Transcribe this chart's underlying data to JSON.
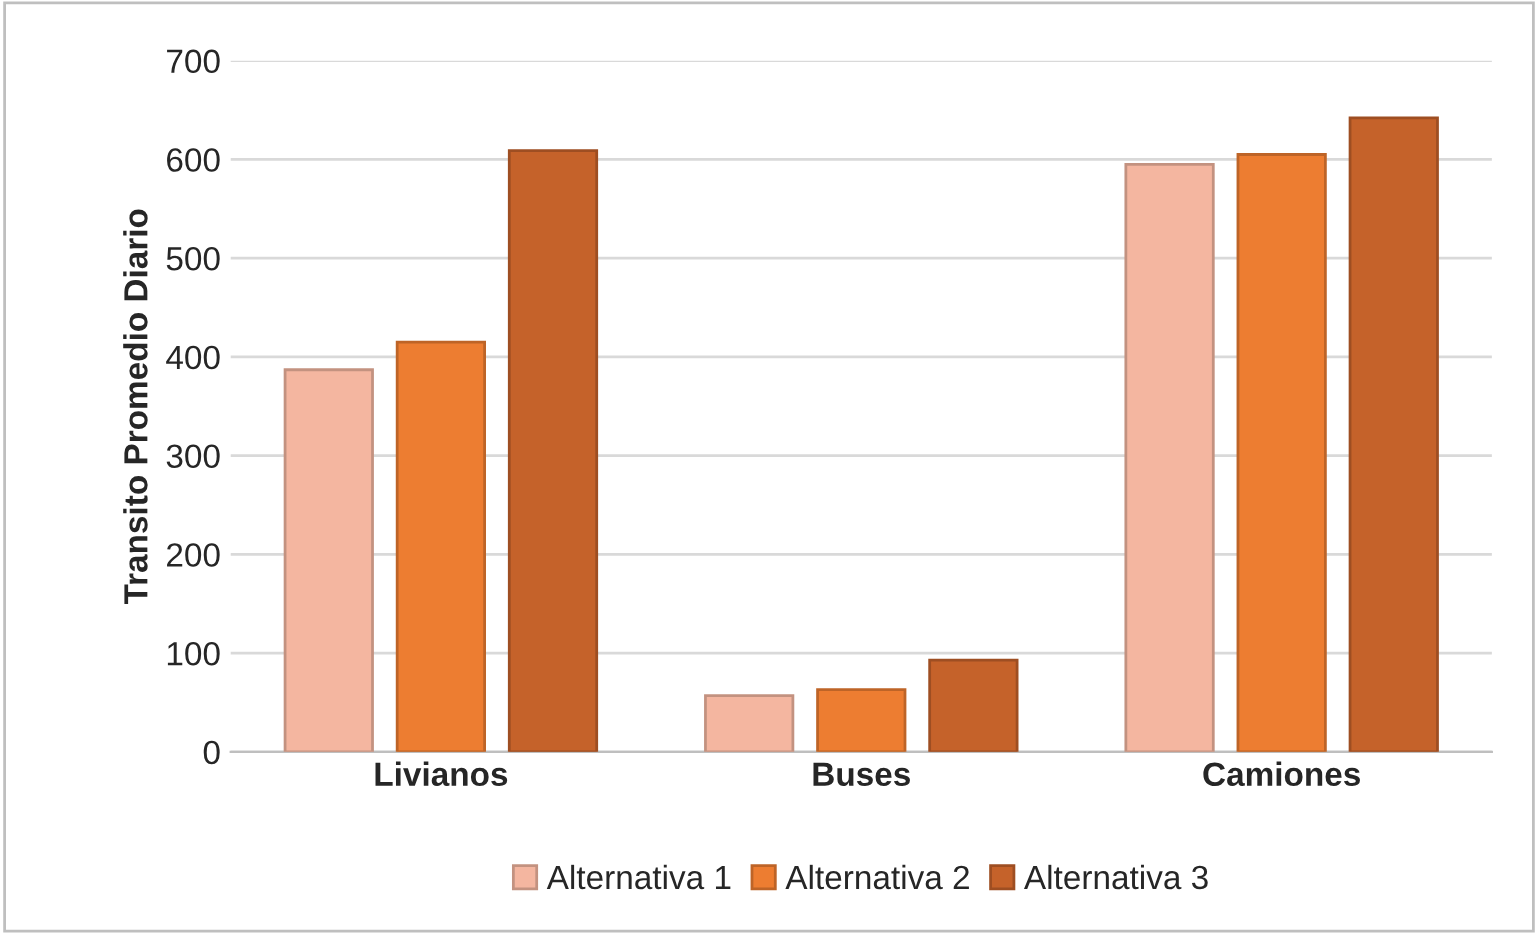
{
  "chart_data": {
    "type": "bar",
    "ylabel": "Transito Promedio Diario",
    "categories": [
      "Livianos",
      "Buses",
      "Camiones"
    ],
    "series": [
      {
        "name": "Alternativa 1",
        "color": "#f4b6a0",
        "values": [
          387,
          57,
          595
        ]
      },
      {
        "name": "Alternativa 2",
        "color": "#ed7d31",
        "values": [
          415,
          63,
          605
        ]
      },
      {
        "name": "Alternativa 3",
        "color": "#c5622a",
        "values": [
          609,
          93,
          642
        ]
      }
    ],
    "ylim": [
      0,
      700
    ],
    "yticks": [
      0,
      100,
      200,
      300,
      400,
      500,
      600,
      700
    ],
    "grid": "y",
    "legend": "bottom"
  }
}
